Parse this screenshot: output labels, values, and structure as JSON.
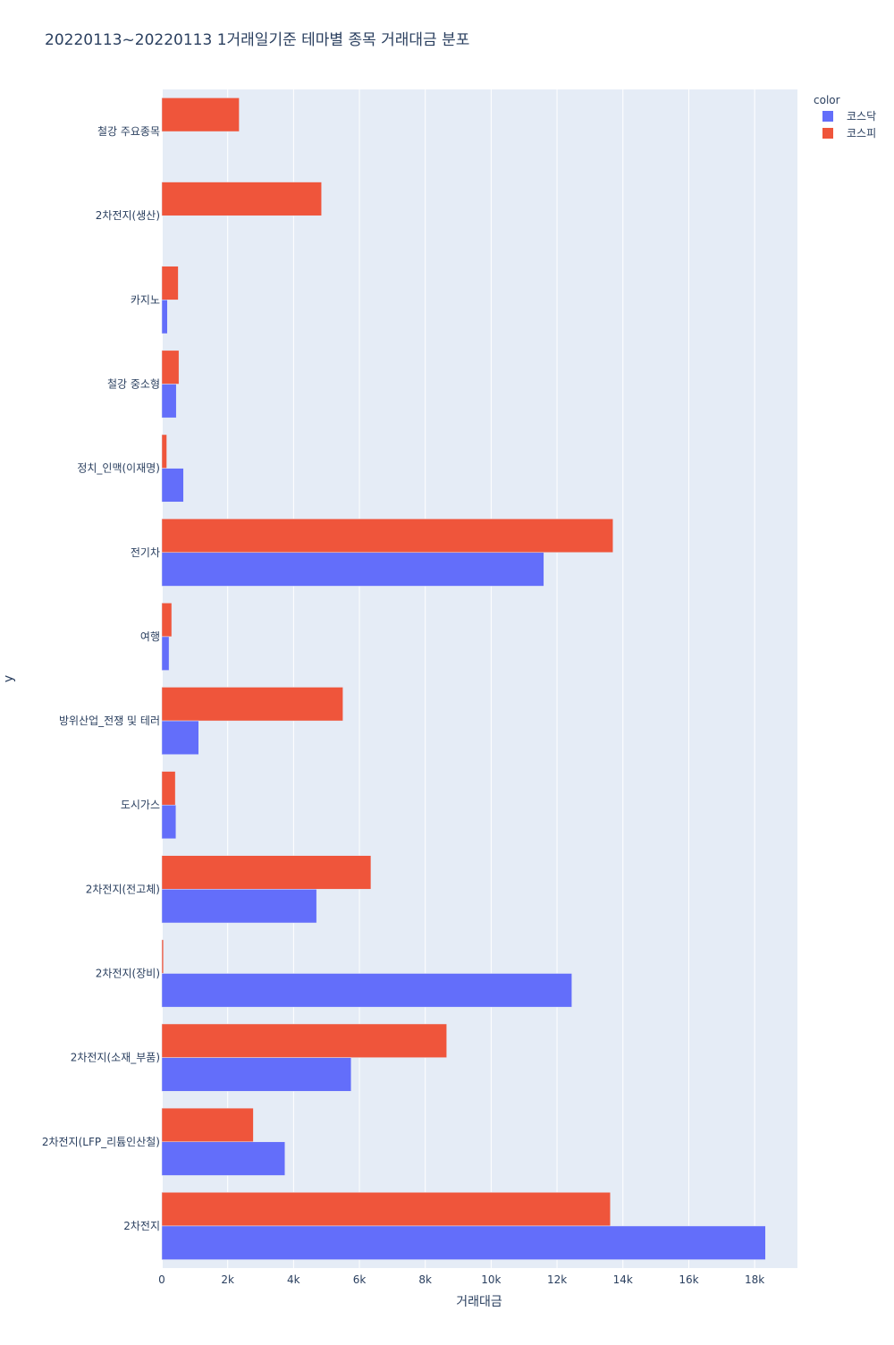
{
  "chart_data": {
    "type": "bar",
    "orientation": "horizontal",
    "title": "20220113~20220113 1거래일기준 테마별 종목 거래대금 분포",
    "xlabel": "거래대금",
    "ylabel": "y",
    "xlim": [
      0,
      19300
    ],
    "xticks": [
      0,
      2000,
      4000,
      6000,
      8000,
      10000,
      12000,
      14000,
      16000,
      18000
    ],
    "xtick_labels": [
      "0",
      "2k",
      "4k",
      "6k",
      "8k",
      "10k",
      "12k",
      "14k",
      "16k",
      "18k"
    ],
    "grid": true,
    "legend_title": "color",
    "legend_position": "top-right",
    "categories": [
      "철강 주요종목",
      "2차전지(생산)",
      "카지노",
      "철강 중소형",
      "정치_인맥(이재명)",
      "전기차",
      "여행",
      "방위산업_전쟁 및 테러",
      "도시가스",
      "2차전지(전고체)",
      "2차전지(장비)",
      "2차전지(소재_부품)",
      "2차전지(LFP_리튬인산철)",
      "2차전지"
    ],
    "series": [
      {
        "name": "코스닥",
        "color": "#636efa",
        "values": [
          0,
          0,
          170,
          440,
          660,
          11600,
          220,
          1120,
          430,
          4700,
          12450,
          5750,
          3740,
          18330
        ]
      },
      {
        "name": "코스피",
        "color": "#ef553b",
        "values": [
          2350,
          4850,
          500,
          520,
          150,
          13700,
          300,
          5500,
          410,
          6350,
          50,
          8650,
          2780,
          13620
        ]
      }
    ]
  }
}
